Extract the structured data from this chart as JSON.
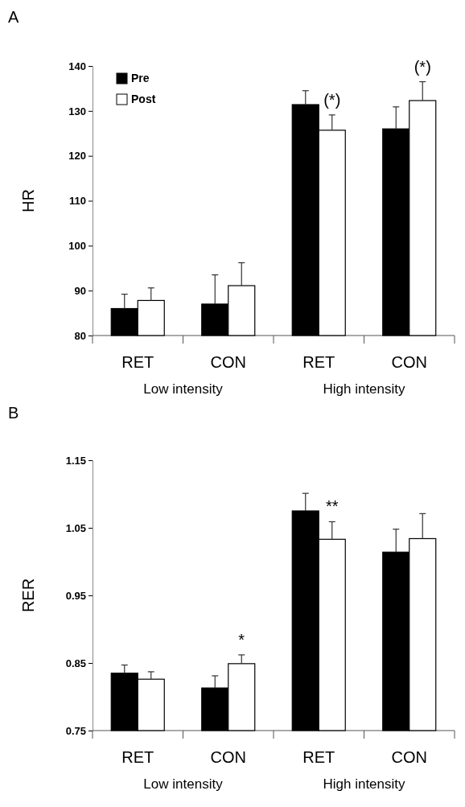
{
  "chart_data": [
    {
      "type": "bar",
      "title": "A",
      "ylabel": "HR",
      "categories": [
        "RET",
        "CON",
        "RET",
        "CON"
      ],
      "ylim": [
        80,
        140
      ],
      "yticks": [
        80,
        90,
        100,
        110,
        120,
        130,
        140
      ],
      "legend": "top left",
      "grid": false,
      "series": [
        {
          "name": "Pre",
          "color": "#000000",
          "values": [
            86.0,
            87.0,
            131.4,
            126.0
          ],
          "errors": [
            [
              86.0,
              89.2
            ],
            [
              87.0,
              93.5
            ],
            [
              131.4,
              134.5
            ],
            [
              126.0,
              130.9
            ]
          ]
        },
        {
          "name": "Post",
          "color": "#ffffff",
          "values": [
            87.8,
            91.1,
            125.7,
            132.3
          ],
          "errors": [
            [
              87.8,
              90.6
            ],
            [
              91.1,
              96.2
            ],
            [
              125.7,
              129.1
            ],
            [
              132.3,
              136.5
            ]
          ]
        }
      ],
      "annotations": [
        "Low intensity",
        "High intensity",
        "(*)",
        "(*)"
      ]
    },
    {
      "type": "bar",
      "title": "B",
      "ylabel": "RER",
      "categories": [
        "RET",
        "CON",
        "RET",
        "CON"
      ],
      "ylim": [
        0.75,
        1.15
      ],
      "yticks": [
        {
          "value": 0.75,
          "label": "0.75"
        },
        {
          "value": 0.85,
          "label": "0.85"
        },
        {
          "value": 0.95,
          "label": "0.95"
        },
        {
          "value": 1.05,
          "label": "1.05"
        },
        {
          "value": 1.15,
          "label": "1.15"
        }
      ],
      "legend": false,
      "grid": false,
      "series": [
        {
          "color": "#000000",
          "values": [
            0.835,
            0.813,
            1.075,
            1.014
          ],
          "errors": [
            [
              0.835,
              0.847
            ],
            [
              0.813,
              0.831
            ],
            [
              1.075,
              1.101
            ],
            [
              1.014,
              1.048
            ]
          ]
        },
        {
          "color": "#ffffff",
          "values": [
            0.826,
            0.849,
            1.033,
            1.034
          ],
          "errors": [
            [
              0.826,
              0.837
            ],
            [
              0.849,
              0.862
            ],
            [
              1.033,
              1.059
            ],
            [
              1.034,
              1.071
            ]
          ]
        }
      ],
      "annotations": [
        "Low intensity",
        "High intensity",
        "*",
        "**"
      ]
    }
  ]
}
